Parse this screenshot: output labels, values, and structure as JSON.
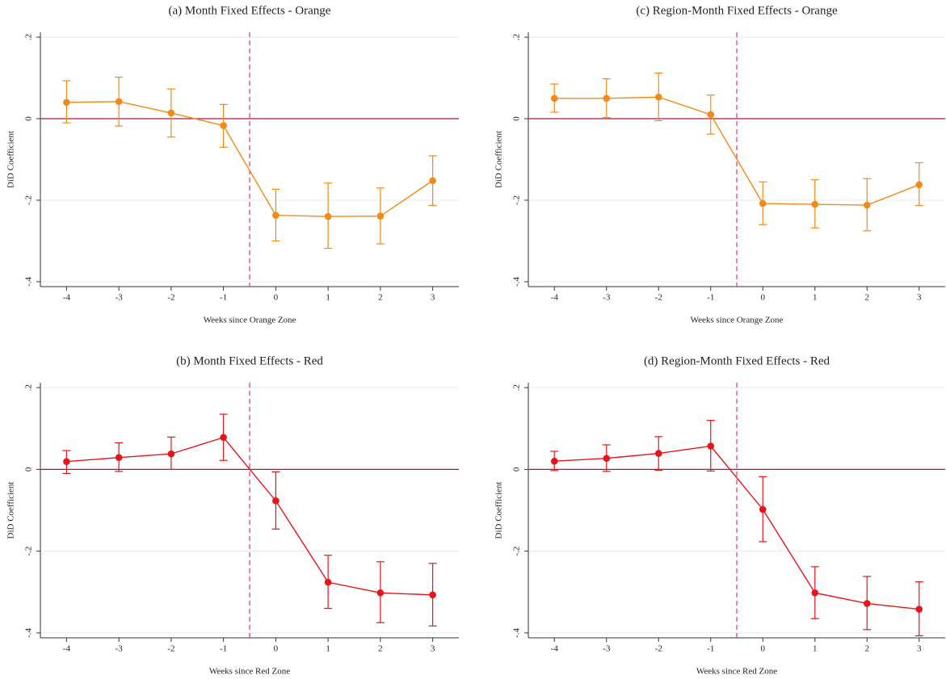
{
  "chart_data": [
    {
      "type": "line",
      "title": "(a) Month Fixed Effects - Orange",
      "x_label": "Weeks since Orange Zone",
      "y_label": "DiD Coefficient",
      "x": [
        -4,
        -3,
        -2,
        -1,
        0,
        1,
        2,
        3
      ],
      "color": "#f28a17",
      "values": [
        0.04,
        0.042,
        0.014,
        -0.017,
        -0.237,
        -0.24,
        -0.239,
        -0.152
      ],
      "ci_lower": [
        -0.01,
        -0.018,
        -0.045,
        -0.07,
        -0.3,
        -0.318,
        -0.307,
        -0.213
      ],
      "ci_upper": [
        0.093,
        0.102,
        0.073,
        0.035,
        -0.173,
        -0.158,
        -0.17,
        -0.091
      ],
      "xlim": [
        -4.5,
        3.5
      ],
      "xticks": [
        -4,
        -3,
        -2,
        -1,
        0,
        1,
        2,
        3
      ],
      "ylim": [
        -0.412,
        0.212
      ],
      "yticks": [
        {
          "value": -0.4,
          "label": "-.4"
        },
        {
          "value": -0.2,
          "label": "-.2"
        },
        0,
        {
          "value": 0.2,
          "label": ".2"
        }
      ],
      "hline": 0,
      "vline": -0.5,
      "grid": true
    },
    {
      "type": "line",
      "title": "(c) Region-Month Fixed Effects - Orange",
      "x_label": "Weeks since Orange Zone",
      "y_label": "DiD Coefficient",
      "x": [
        -4,
        -3,
        -2,
        -1,
        0,
        1,
        2,
        3
      ],
      "color": "#f28a17",
      "values": [
        0.05,
        0.05,
        0.053,
        0.01,
        -0.208,
        -0.21,
        -0.212,
        -0.162
      ],
      "ci_lower": [
        0.016,
        0.003,
        -0.005,
        -0.038,
        -0.26,
        -0.268,
        -0.275,
        -0.213
      ],
      "ci_upper": [
        0.085,
        0.098,
        0.112,
        0.058,
        -0.155,
        -0.15,
        -0.147,
        -0.108
      ],
      "xlim": [
        -4.5,
        3.5
      ],
      "xticks": [
        -4,
        -3,
        -2,
        -1,
        0,
        1,
        2,
        3
      ],
      "ylim": [
        -0.412,
        0.212
      ],
      "yticks": [
        {
          "value": -0.4,
          "label": "-.4"
        },
        {
          "value": -0.2,
          "label": "-.2"
        },
        0,
        {
          "value": 0.2,
          "label": ".2"
        }
      ],
      "hline": 0,
      "vline": -0.5,
      "grid": true
    },
    {
      "type": "line",
      "title": "(b) Month Fixed Effects - Red",
      "x_label": "Weeks since Red Zone",
      "y_label": "DiD Coefficient",
      "x": [
        -4,
        -3,
        -2,
        -1,
        0,
        1,
        2,
        3
      ],
      "color": "#e8141c",
      "values": [
        0.019,
        0.029,
        0.038,
        0.078,
        -0.077,
        -0.276,
        -0.302,
        -0.307
      ],
      "ci_lower": [
        -0.01,
        -0.005,
        0.0,
        0.022,
        -0.146,
        -0.34,
        -0.375,
        -0.383
      ],
      "ci_upper": [
        0.046,
        0.065,
        0.079,
        0.135,
        -0.006,
        -0.21,
        -0.226,
        -0.23
      ],
      "xlim": [
        -4.5,
        3.5
      ],
      "xticks": [
        -4,
        -3,
        -2,
        -1,
        0,
        1,
        2,
        3
      ],
      "ylim": [
        -0.412,
        0.212
      ],
      "yticks": [
        {
          "value": -0.4,
          "label": "-.4"
        },
        {
          "value": -0.2,
          "label": "-.2"
        },
        0,
        {
          "value": 0.2,
          "label": ".2"
        }
      ],
      "hline": 0,
      "vline": -0.5,
      "grid": true
    },
    {
      "type": "line",
      "title": "(d) Region-Month Fixed Effects - Red",
      "x_label": "Weeks since Red Zone",
      "y_label": "DiD Coefficient",
      "x": [
        -4,
        -3,
        -2,
        -1,
        0,
        1,
        2,
        3
      ],
      "color": "#e8141c",
      "values": [
        0.02,
        0.027,
        0.039,
        0.057,
        -0.098,
        -0.302,
        -0.328,
        -0.342
      ],
      "ci_lower": [
        -0.003,
        -0.005,
        -0.002,
        -0.004,
        -0.177,
        -0.365,
        -0.392,
        -0.407
      ],
      "ci_upper": [
        0.044,
        0.06,
        0.08,
        0.12,
        -0.018,
        -0.238,
        -0.262,
        -0.275
      ],
      "xlim": [
        -4.5,
        3.5
      ],
      "xticks": [
        -4,
        -3,
        -2,
        -1,
        0,
        1,
        2,
        3
      ],
      "ylim": [
        -0.412,
        0.212
      ],
      "yticks": [
        {
          "value": -0.4,
          "label": "-.4"
        },
        {
          "value": -0.2,
          "label": "-.2"
        },
        0,
        {
          "value": 0.2,
          "label": ".2"
        }
      ],
      "hline": 0,
      "vline": -0.5,
      "grid": true
    }
  ]
}
